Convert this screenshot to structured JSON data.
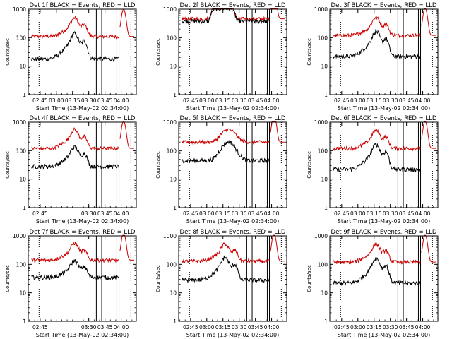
{
  "colors": {
    "events": "#000000",
    "lld": "#cc0000",
    "axis": "#000000",
    "background": "#ffffff"
  },
  "xlabel": "Start Time (13-May-02 02:34:00)",
  "ylabel": "Counts/sec",
  "ylim": [
    1,
    1000
  ],
  "y_ticks": [
    "1",
    "10",
    "100",
    "1000"
  ],
  "x_ticks": [
    "02:45",
    "03:00",
    "03:15",
    "03:30",
    "03:45",
    "04:00"
  ],
  "x_ticks_short": [
    "02:45",
    "03:30",
    "03:45",
    "04:00"
  ],
  "xlim": [
    "02:34",
    "04:14"
  ],
  "chart_data": [
    {
      "type": "line",
      "title": "Det 1f BLACK = Events, RED = LLD",
      "variant": "A",
      "short_ticks": false,
      "events": {
        "base": 18,
        "hump1": 110,
        "hump2": 75
      },
      "lld": {
        "base": 110,
        "hump1": 400,
        "hump2": 280
      }
    },
    {
      "type": "line",
      "title": "Det 2f BLACK = Events, RED = LLD",
      "variant": "B",
      "short_ticks": false,
      "events": {
        "base": 380,
        "hump1": 1050,
        "hump2": 0
      },
      "lld": {
        "base": 460,
        "hump1": 1200,
        "hump2": 0
      }
    },
    {
      "type": "line",
      "title": "Det 3f BLACK = Events, RED = LLD",
      "variant": "A",
      "short_ticks": false,
      "events": {
        "base": 22,
        "hump1": 130,
        "hump2": 90
      },
      "lld": {
        "base": 120,
        "hump1": 420,
        "hump2": 300
      }
    },
    {
      "type": "line",
      "title": "Det 4f BLACK = Events, RED = LLD",
      "variant": "A",
      "short_ticks": true,
      "events": {
        "base": 28,
        "hump1": 110,
        "hump2": 80
      },
      "lld": {
        "base": 120,
        "hump1": 450,
        "hump2": 300
      }
    },
    {
      "type": "line",
      "title": "Det 5f BLACK = Events, RED = LLD",
      "variant": "C",
      "short_ticks": false,
      "events": {
        "base": 45,
        "hump1": 200,
        "hump2": 150
      },
      "lld": {
        "base": 200,
        "hump1": 550,
        "hump2": 400
      }
    },
    {
      "type": "line",
      "title": "Det 6f BLACK = Events, RED = LLD",
      "variant": "A",
      "short_ticks": false,
      "events": {
        "base": 22,
        "hump1": 130,
        "hump2": 90
      },
      "lld": {
        "base": 120,
        "hump1": 420,
        "hump2": 300
      }
    },
    {
      "type": "line",
      "title": "Det 7f BLACK = Events, RED = LLD",
      "variant": "A",
      "short_ticks": true,
      "events": {
        "base": 35,
        "hump1": 110,
        "hump2": 80
      },
      "lld": {
        "base": 140,
        "hump1": 450,
        "hump2": 300
      }
    },
    {
      "type": "line",
      "title": "Det 8f BLACK = Events, RED = LLD",
      "variant": "A",
      "short_ticks": false,
      "events": {
        "base": 28,
        "hump1": 140,
        "hump2": 100
      },
      "lld": {
        "base": 130,
        "hump1": 430,
        "hump2": 310
      }
    },
    {
      "type": "line",
      "title": "Det 9f BLACK = Events, RED = LLD",
      "variant": "A",
      "short_ticks": false,
      "events": {
        "base": 22,
        "hump1": 130,
        "hump2": 90
      },
      "lld": {
        "base": 120,
        "hump1": 420,
        "hump2": 300
      }
    }
  ]
}
